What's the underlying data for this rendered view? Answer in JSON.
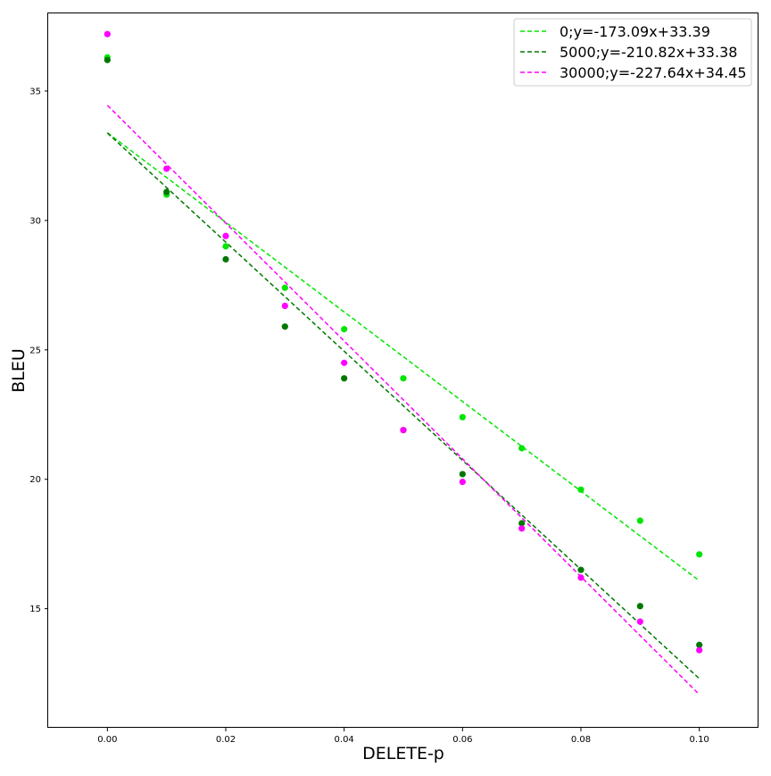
{
  "chart_data": {
    "type": "scatter",
    "title": "",
    "xlabel": "DELETE-p",
    "ylabel": "BLEU",
    "xlim": [
      -0.01,
      0.11
    ],
    "ylim": [
      10.4,
      38.0
    ],
    "xticks": [
      0.0,
      0.02,
      0.04,
      0.06,
      0.08,
      0.1
    ],
    "xtick_labels": [
      "0.00",
      "0.02",
      "0.04",
      "0.06",
      "0.08",
      "0.10"
    ],
    "yticks": [
      15,
      20,
      25,
      30,
      35
    ],
    "ytick_labels": [
      "15",
      "20",
      "25",
      "30",
      "35"
    ],
    "grid": false,
    "legend_position": "top-right",
    "x": [
      0.0,
      0.01,
      0.02,
      0.03,
      0.04,
      0.05,
      0.06,
      0.07,
      0.08,
      0.09,
      0.1
    ],
    "series": [
      {
        "name": "0;y=-173.09x+33.39",
        "color": "#00e600",
        "values": [
          36.3,
          31.0,
          29.0,
          27.4,
          25.8,
          23.9,
          22.4,
          21.2,
          19.6,
          18.4,
          17.1
        ],
        "fit": {
          "slope": -173.09,
          "intercept": 33.39
        }
      },
      {
        "name": "5000;y=-210.82x+33.38",
        "color": "#007800",
        "values": [
          36.2,
          31.1,
          28.5,
          25.9,
          23.9,
          21.9,
          20.2,
          18.3,
          16.5,
          15.1,
          13.6
        ],
        "fit": {
          "slope": -210.82,
          "intercept": 33.38
        }
      },
      {
        "name": "30000;y=-227.64x+34.45",
        "color": "#ff00ff",
        "values": [
          37.2,
          32.0,
          29.4,
          26.7,
          24.5,
          21.9,
          19.9,
          18.1,
          16.2,
          14.5,
          13.4
        ],
        "fit": {
          "slope": -227.64,
          "intercept": 34.45
        }
      }
    ]
  }
}
